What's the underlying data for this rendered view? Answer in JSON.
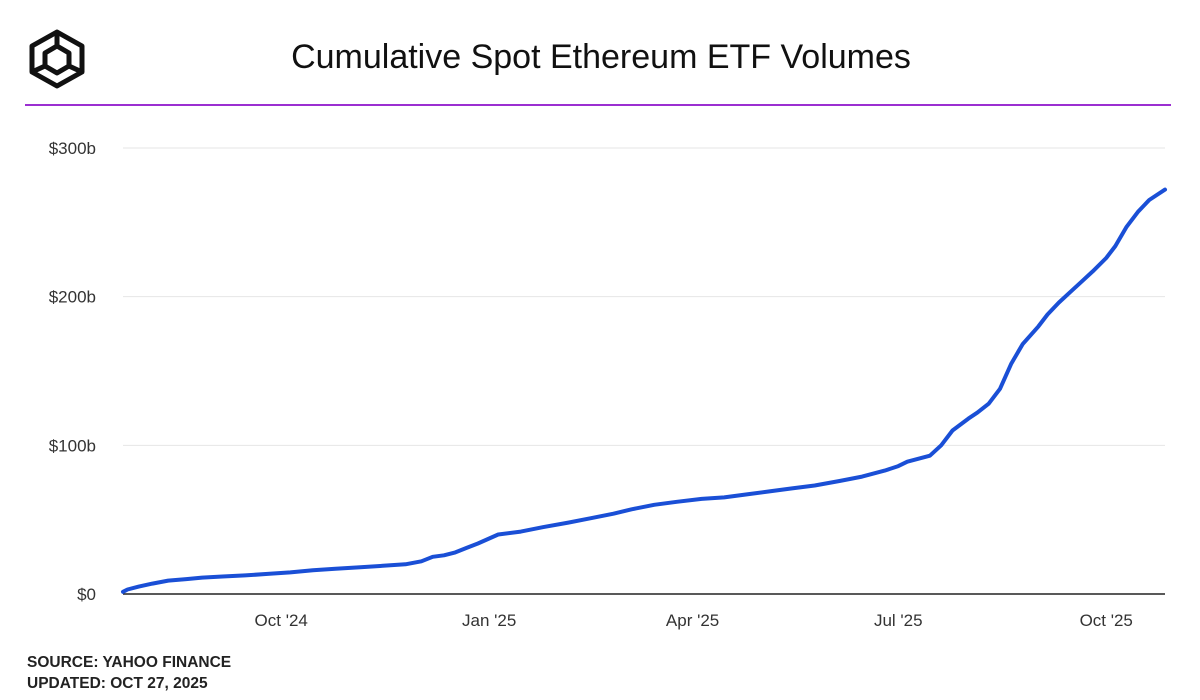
{
  "header": {
    "logo_icon": "cube-outline-icon",
    "title": "Cumulative Spot Ethereum ETF Volumes",
    "accent_color": "#9b2fd1"
  },
  "chart_data": {
    "type": "line",
    "title": "Cumulative Spot Ethereum ETF Volumes",
    "xlabel": "",
    "ylabel": "",
    "x_ticks": [
      "Oct '24",
      "Jan '25",
      "Apr '25",
      "Jul '25",
      "Oct '25"
    ],
    "x_tick_dates": [
      "2024-10-01",
      "2025-01-01",
      "2025-04-01",
      "2025-07-01",
      "2025-10-01"
    ],
    "y_ticks": [
      "$0",
      "$300b",
      "$200b",
      "$100b"
    ],
    "y_tick_values": [
      0,
      300,
      200,
      100
    ],
    "y_unit": "$ billions",
    "ylim": [
      0,
      300
    ],
    "xlim": [
      "2024-07-23",
      "2025-10-27"
    ],
    "grid": true,
    "line_color": "#1a4fd6",
    "series": [
      {
        "x": [
          "2024-07-23",
          "2024-07-25",
          "2024-07-30",
          "2024-08-05",
          "2024-08-12",
          "2024-08-20",
          "2024-08-27",
          "2024-09-05",
          "2024-09-15",
          "2024-09-25",
          "2024-10-05",
          "2024-10-15",
          "2024-10-25",
          "2024-11-05",
          "2024-11-15",
          "2024-11-25",
          "2024-12-02",
          "2024-12-07",
          "2024-12-12",
          "2024-12-17",
          "2024-12-22",
          "2024-12-27",
          "2025-01-05",
          "2025-01-15",
          "2025-01-25",
          "2025-02-05",
          "2025-02-15",
          "2025-02-25",
          "2025-03-05",
          "2025-03-15",
          "2025-03-25",
          "2025-04-05",
          "2025-04-15",
          "2025-04-25",
          "2025-05-05",
          "2025-05-15",
          "2025-05-25",
          "2025-06-05",
          "2025-06-15",
          "2025-06-25",
          "2025-07-01",
          "2025-07-05",
          "2025-07-10",
          "2025-07-15",
          "2025-07-20",
          "2025-07-25",
          "2025-08-01",
          "2025-08-05",
          "2025-08-10",
          "2025-08-15",
          "2025-08-20",
          "2025-08-25",
          "2025-09-01",
          "2025-09-05",
          "2025-09-10",
          "2025-09-15",
          "2025-09-20",
          "2025-09-25",
          "2025-10-01",
          "2025-10-05",
          "2025-10-10",
          "2025-10-15",
          "2025-10-20",
          "2025-10-27"
        ],
        "values": [
          1.5,
          3,
          5,
          7,
          9,
          10,
          11,
          11.8,
          12.5,
          13.5,
          14.5,
          16,
          17,
          18,
          19,
          20,
          22,
          25,
          26,
          28,
          31,
          34,
          40,
          42,
          45,
          48,
          51,
          54,
          57,
          60,
          62,
          64,
          65,
          67,
          69,
          71,
          73,
          76,
          79,
          83,
          86,
          89,
          91,
          93,
          100,
          110,
          118,
          122,
          128,
          138,
          155,
          168,
          180,
          188,
          196,
          203,
          210,
          217,
          226,
          234,
          247,
          257,
          265,
          272
        ]
      }
    ]
  },
  "footer": {
    "source": "SOURCE: YAHOO FINANCE",
    "updated": "UPDATED: OCT 27, 2025"
  }
}
